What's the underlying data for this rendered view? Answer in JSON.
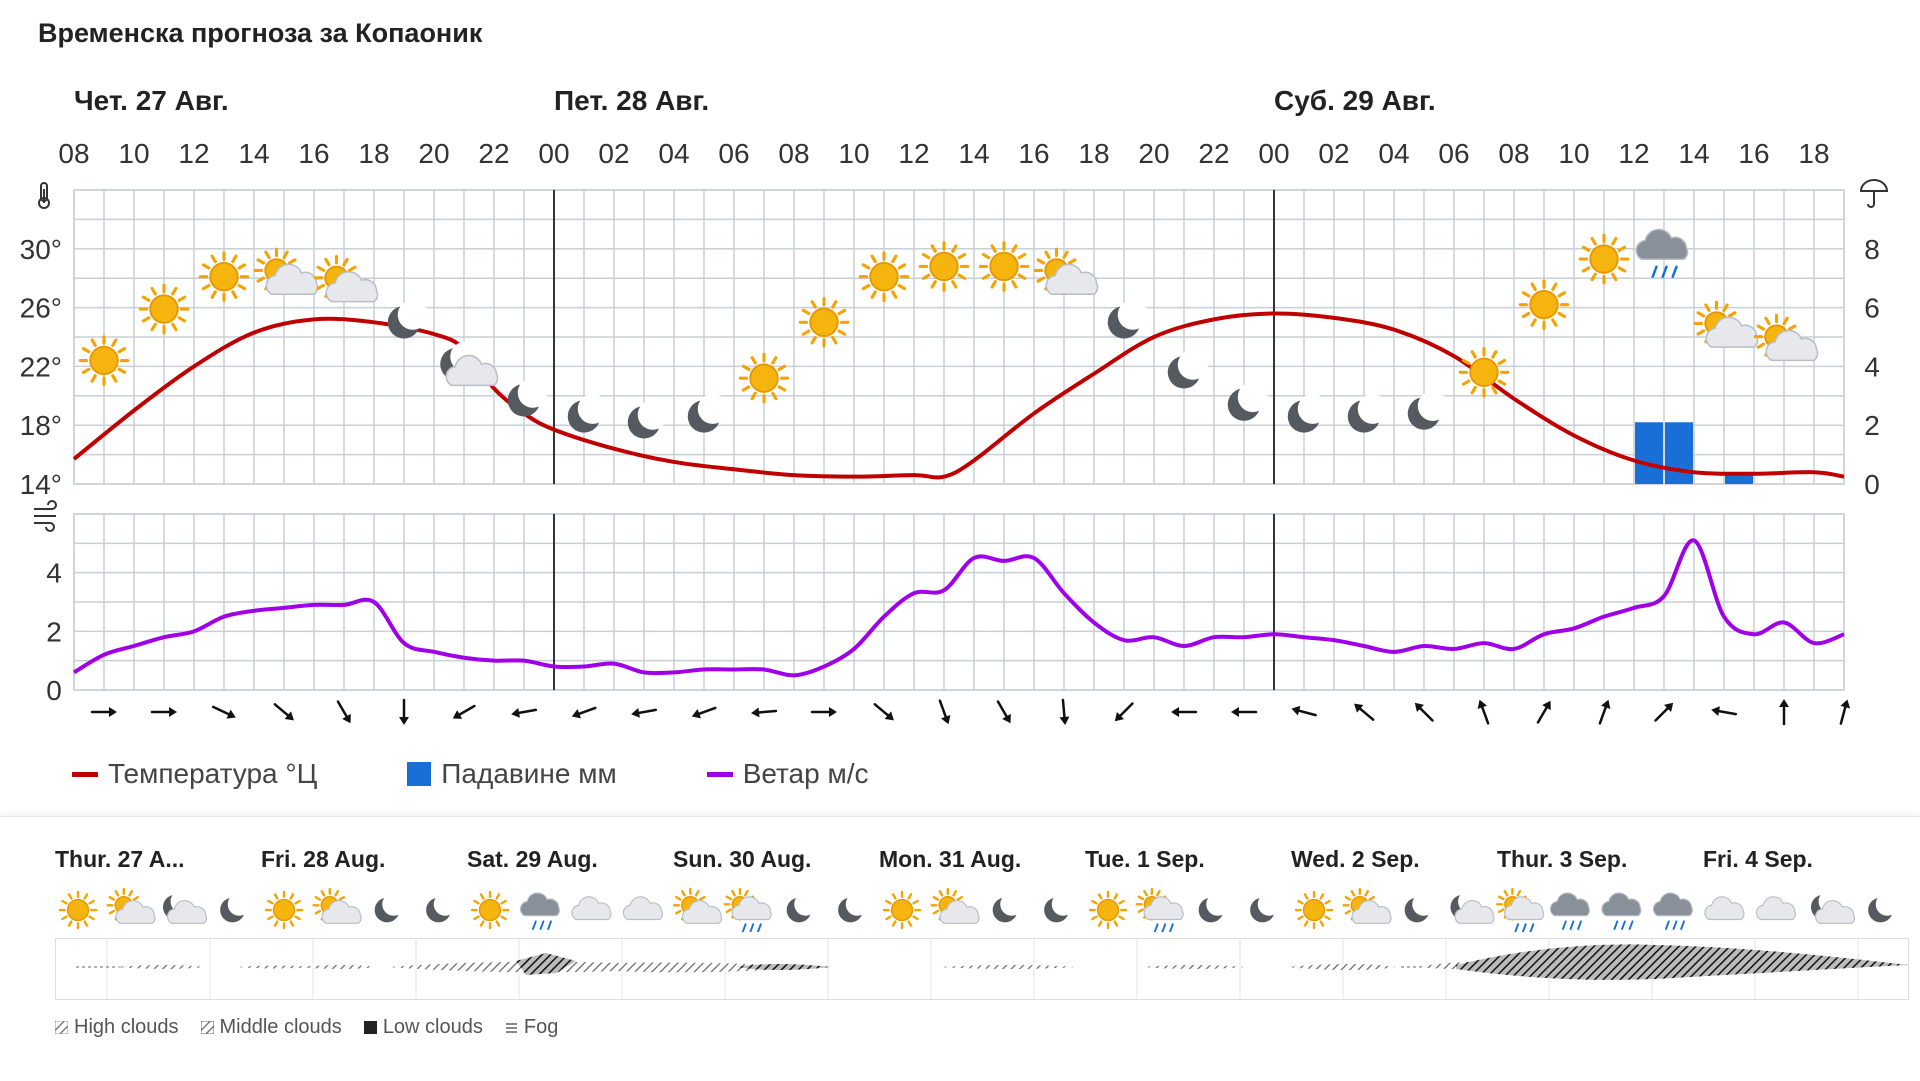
{
  "title": "Временска прогноза за Копаоник",
  "chart_data": [
    {
      "type": "line",
      "name": "temperature-precipitation",
      "day_labels": [
        {
          "label": "Чет. 27 Авг.",
          "hour_index": 0
        },
        {
          "label": "Пет. 28 Авг.",
          "hour_index": 16
        },
        {
          "label": "Суб. 29 Авг.",
          "hour_index": 40
        }
      ],
      "x_ticks": [
        "08",
        "10",
        "12",
        "14",
        "16",
        "18",
        "20",
        "22",
        "00",
        "02",
        "04",
        "06",
        "08",
        "10",
        "12",
        "14",
        "16",
        "18",
        "20",
        "22",
        "00",
        "02",
        "04",
        "06",
        "08",
        "10",
        "12",
        "14",
        "16",
        "18"
      ],
      "day_separators_hour_index": [
        16,
        40
      ],
      "hours_span": [
        0,
        59
      ],
      "y_left": {
        "ticks": [
          "14°",
          "18°",
          "22°",
          "26°",
          "30°"
        ],
        "values": [
          14,
          18,
          22,
          26,
          30
        ],
        "range": [
          14,
          34
        ]
      },
      "y_right": {
        "ticks": [
          "0",
          "2",
          "4",
          "6",
          "8"
        ],
        "values": [
          0,
          2,
          4,
          6,
          8
        ],
        "range": [
          0,
          10
        ]
      },
      "series": [
        {
          "name": "Температура °Ц",
          "color": "#c00000",
          "points": [
            [
              0,
              15.7
            ],
            [
              2,
              19.0
            ],
            [
              4,
              22.0
            ],
            [
              6,
              24.3
            ],
            [
              8,
              25.2
            ],
            [
              10,
              25.0
            ],
            [
              12,
              24.2
            ],
            [
              13,
              23.2
            ],
            [
              14,
              20.5
            ],
            [
              15,
              18.8
            ],
            [
              16,
              17.7
            ],
            [
              18,
              16.4
            ],
            [
              20,
              15.5
            ],
            [
              22,
              15.0
            ],
            [
              24,
              14.6
            ],
            [
              26,
              14.5
            ],
            [
              28,
              14.6
            ],
            [
              29,
              14.5
            ],
            [
              30,
              15.6
            ],
            [
              32,
              18.8
            ],
            [
              34,
              21.5
            ],
            [
              36,
              24.0
            ],
            [
              38,
              25.2
            ],
            [
              40,
              25.6
            ],
            [
              42,
              25.3
            ],
            [
              44,
              24.5
            ],
            [
              46,
              22.7
            ],
            [
              48,
              19.8
            ],
            [
              50,
              17.3
            ],
            [
              52,
              15.6
            ],
            [
              54,
              14.8
            ],
            [
              56,
              14.7
            ],
            [
              58,
              14.8
            ],
            [
              60,
              14.5
            ]
          ]
        },
        {
          "name": "Падавине мм",
          "color": "#1a6fd6",
          "type": "bar",
          "bars": [
            [
              52.5,
              2.1
            ],
            [
              53.5,
              2.1
            ],
            [
              55.5,
              0.3
            ]
          ]
        }
      ],
      "weather_icons": [
        {
          "h": 1,
          "icon": "sun",
          "t": 22.4
        },
        {
          "h": 3,
          "icon": "sun",
          "t": 25.9
        },
        {
          "h": 5,
          "icon": "sun",
          "t": 28.1
        },
        {
          "h": 7,
          "icon": "sun-cloud",
          "t": 28.1
        },
        {
          "h": 9,
          "icon": "sun-cloud",
          "t": 27.6
        },
        {
          "h": 11,
          "icon": "moon",
          "t": 25.0
        },
        {
          "h": 13,
          "icon": "moon-cloud",
          "t": 21.9
        },
        {
          "h": 15,
          "icon": "moon",
          "t": 19.7
        },
        {
          "h": 17,
          "icon": "moon",
          "t": 18.6
        },
        {
          "h": 19,
          "icon": "moon",
          "t": 18.2
        },
        {
          "h": 21,
          "icon": "moon",
          "t": 18.6
        },
        {
          "h": 23,
          "icon": "sun",
          "t": 21.2
        },
        {
          "h": 25,
          "icon": "sun",
          "t": 25.0
        },
        {
          "h": 27,
          "icon": "sun",
          "t": 28.1
        },
        {
          "h": 29,
          "icon": "sun",
          "t": 28.8
        },
        {
          "h": 31,
          "icon": "sun",
          "t": 28.8
        },
        {
          "h": 33,
          "icon": "sun-cloud",
          "t": 28.1
        },
        {
          "h": 35,
          "icon": "moon",
          "t": 25.0
        },
        {
          "h": 37,
          "icon": "moon",
          "t": 21.6
        },
        {
          "h": 39,
          "icon": "moon",
          "t": 19.4
        },
        {
          "h": 41,
          "icon": "moon",
          "t": 18.6
        },
        {
          "h": 43,
          "icon": "moon",
          "t": 18.6
        },
        {
          "h": 45,
          "icon": "moon",
          "t": 18.8
        },
        {
          "h": 47,
          "icon": "sun",
          "t": 21.6
        },
        {
          "h": 49,
          "icon": "sun",
          "t": 26.2
        },
        {
          "h": 51,
          "icon": "sun",
          "t": 29.3
        },
        {
          "h": 53,
          "icon": "rain-cloud",
          "t": 29.8
        },
        {
          "h": 55,
          "icon": "sun-cloud",
          "t": 24.5
        },
        {
          "h": 57,
          "icon": "sun-cloud",
          "t": 23.6
        }
      ]
    },
    {
      "type": "line",
      "name": "wind",
      "y_ticks": [
        "0",
        "2",
        "4"
      ],
      "y_values": [
        0,
        2,
        4
      ],
      "y_range": [
        0,
        6
      ],
      "series": [
        {
          "name": "Ветар м/с",
          "color": "#a000e8",
          "points": [
            [
              0,
              0.6
            ],
            [
              1,
              1.2
            ],
            [
              2,
              1.5
            ],
            [
              3,
              1.8
            ],
            [
              4,
              2.0
            ],
            [
              5,
              2.5
            ],
            [
              6,
              2.7
            ],
            [
              7,
              2.8
            ],
            [
              8,
              2.9
            ],
            [
              9,
              2.9
            ],
            [
              10,
              3.0
            ],
            [
              11,
              1.6
            ],
            [
              12,
              1.3
            ],
            [
              13,
              1.1
            ],
            [
              14,
              1.0
            ],
            [
              15,
              1.0
            ],
            [
              16,
              0.8
            ],
            [
              17,
              0.8
            ],
            [
              18,
              0.9
            ],
            [
              19,
              0.6
            ],
            [
              20,
              0.6
            ],
            [
              21,
              0.7
            ],
            [
              22,
              0.7
            ],
            [
              23,
              0.7
            ],
            [
              24,
              0.5
            ],
            [
              25,
              0.8
            ],
            [
              26,
              1.4
            ],
            [
              27,
              2.5
            ],
            [
              28,
              3.3
            ],
            [
              29,
              3.4
            ],
            [
              30,
              4.5
            ],
            [
              31,
              4.4
            ],
            [
              32,
              4.5
            ],
            [
              33,
              3.3
            ],
            [
              34,
              2.3
            ],
            [
              35,
              1.7
            ],
            [
              36,
              1.8
            ],
            [
              37,
              1.5
            ],
            [
              38,
              1.8
            ],
            [
              39,
              1.8
            ],
            [
              40,
              1.9
            ],
            [
              41,
              1.8
            ],
            [
              42,
              1.7
            ],
            [
              43,
              1.5
            ],
            [
              44,
              1.3
            ],
            [
              45,
              1.5
            ],
            [
              46,
              1.4
            ],
            [
              47,
              1.6
            ],
            [
              48,
              1.4
            ],
            [
              49,
              1.9
            ],
            [
              50,
              2.1
            ],
            [
              51,
              2.5
            ],
            [
              52,
              2.8
            ],
            [
              53,
              3.2
            ],
            [
              54,
              5.1
            ],
            [
              55,
              2.5
            ],
            [
              56,
              1.9
            ],
            [
              57,
              2.3
            ],
            [
              58,
              1.6
            ],
            [
              59,
              1.9
            ]
          ]
        }
      ],
      "wind_directions_deg": [
        {
          "h": 1,
          "to": 90
        },
        {
          "h": 3,
          "to": 90
        },
        {
          "h": 5,
          "to": 115
        },
        {
          "h": 7,
          "to": 130
        },
        {
          "h": 9,
          "to": 150
        },
        {
          "h": 11,
          "to": 180
        },
        {
          "h": 13,
          "to": 240
        },
        {
          "h": 15,
          "to": 260
        },
        {
          "h": 17,
          "to": 250
        },
        {
          "h": 19,
          "to": 260
        },
        {
          "h": 21,
          "to": 250
        },
        {
          "h": 23,
          "to": 265
        },
        {
          "h": 25,
          "to": 90
        },
        {
          "h": 27,
          "to": 130
        },
        {
          "h": 29,
          "to": 160
        },
        {
          "h": 31,
          "to": 150
        },
        {
          "h": 33,
          "to": 175
        },
        {
          "h": 35,
          "to": 225
        },
        {
          "h": 37,
          "to": 270
        },
        {
          "h": 39,
          "to": 270
        },
        {
          "h": 41,
          "to": 285
        },
        {
          "h": 43,
          "to": 310
        },
        {
          "h": 45,
          "to": 315
        },
        {
          "h": 47,
          "to": 340
        },
        {
          "h": 49,
          "to": 30
        },
        {
          "h": 51,
          "to": 20
        },
        {
          "h": 53,
          "to": 45
        },
        {
          "h": 55,
          "to": 280
        },
        {
          "h": 57,
          "to": 0
        },
        {
          "h": 59,
          "to": 15
        }
      ]
    }
  ],
  "legend": {
    "temperature": "Температура °Ц",
    "precipitation": "Падавине мм",
    "wind": "Ветар м/с",
    "temperature_color": "#c00000",
    "precipitation_color": "#1a6fd6",
    "wind_color": "#a000e8"
  },
  "overview": {
    "days": [
      {
        "label": "Thur. 27 A..."
      },
      {
        "label": "Fri. 28 Aug."
      },
      {
        "label": "Sat. 29 Aug."
      },
      {
        "label": "Sun. 30 Aug."
      },
      {
        "label": "Mon. 31 Aug."
      },
      {
        "label": "Tue. 1 Sep."
      },
      {
        "label": "Wed. 2 Sep."
      },
      {
        "label": "Thur. 3 Sep."
      },
      {
        "label": "Fri. 4 Sep."
      }
    ],
    "icons": [
      "sun",
      "sun-cloud",
      "moon-cloud",
      "moon",
      "sun",
      "sun-cloud",
      "moon",
      "moon",
      "sun",
      "rain-cloud",
      "cloud",
      "cloud",
      "sun-cloud",
      "sun-rain",
      "moon",
      "moon",
      "sun",
      "sun-cloud",
      "moon",
      "moon",
      "sun",
      "sun-rain",
      "moon",
      "moon",
      "sun",
      "sun-cloud",
      "moon",
      "moon-cloud",
      "sun-rain",
      "rain-cloud",
      "rain-cloud",
      "rain-cloud",
      "cloud",
      "cloud",
      "moon-cloud",
      "moon"
    ],
    "cloud_legend": {
      "high": "High clouds",
      "middle": "Middle clouds",
      "low": "Low clouds",
      "fog": "Fog"
    }
  }
}
